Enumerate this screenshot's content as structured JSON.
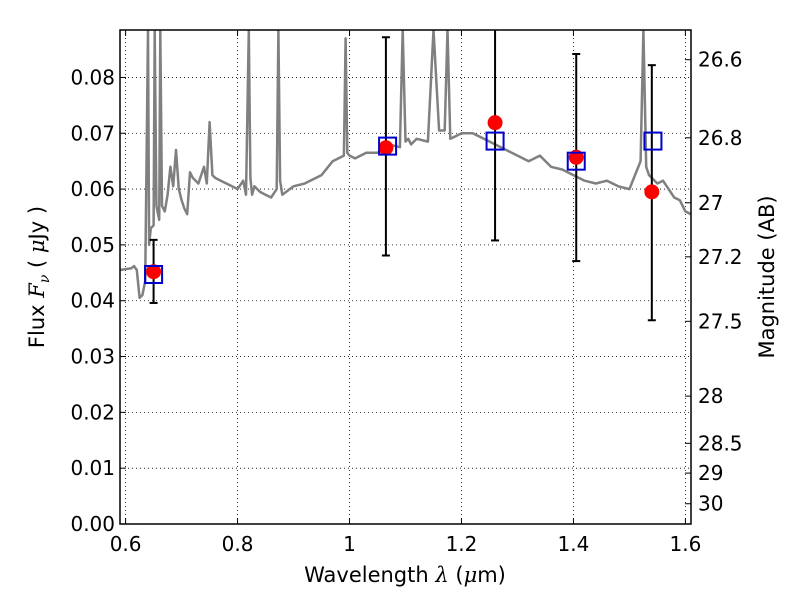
{
  "chart_data": {
    "type": "scatter",
    "title": "",
    "xlabel_text": "Wavelength",
    "xlabel_symbol": "λ",
    "xlabel_unit_open": " (",
    "xlabel_unit_mu": "μ",
    "xlabel_unit_close": "m)",
    "ylabel_text": "Flux",
    "ylabel_symbol": "F",
    "ylabel_sub": "ν",
    "ylabel_unit_open": " ( ",
    "ylabel_unit_mu": "μ",
    "ylabel_unit_close": "Jy )",
    "y2label": "Magnitude (AB)",
    "xlim": [
      0.59,
      1.61
    ],
    "ylim": [
      0.0,
      0.0885
    ],
    "grid": true,
    "x_ticks": [
      0.6,
      0.8,
      1.0,
      1.2,
      1.4,
      1.6
    ],
    "x_tick_labels": [
      "0.6",
      "0.8",
      "1",
      "1.2",
      "1.4",
      "1.6"
    ],
    "y_ticks": [
      0.0,
      0.01,
      0.02,
      0.03,
      0.04,
      0.05,
      0.06,
      0.07,
      0.08
    ],
    "y_tick_labels": [
      "0.00",
      "0.01",
      "0.02",
      "0.03",
      "0.04",
      "0.05",
      "0.06",
      "0.07",
      "0.08"
    ],
    "y2_ticks": [
      26.6,
      26.8,
      27.0,
      27.2,
      27.5,
      28.0,
      28.5,
      29.0,
      30.0
    ],
    "y2_tick_labels": [
      "26.6",
      "26.8",
      "27",
      "27.2",
      "27.5",
      "28",
      "28.5",
      "29",
      "30"
    ],
    "y2_zero_point_uJy": 0.0363,
    "colors": {
      "template": "#808080",
      "observed": "#ff0000",
      "model": "#0000cc",
      "errorbar": "#000000"
    },
    "series": [
      {
        "type": "line",
        "x": [
          0.59,
          0.61,
          0.615,
          0.62,
          0.625,
          0.63,
          0.635,
          0.64,
          0.642,
          0.645,
          0.65,
          0.652,
          0.655,
          0.66,
          0.662,
          0.665,
          0.67,
          0.675,
          0.68,
          0.685,
          0.69,
          0.695,
          0.7,
          0.705,
          0.71,
          0.715,
          0.72,
          0.73,
          0.74,
          0.745,
          0.75,
          0.755,
          0.76,
          0.77,
          0.78,
          0.79,
          0.8,
          0.81,
          0.815,
          0.82,
          0.823,
          0.826,
          0.83,
          0.84,
          0.85,
          0.86,
          0.87,
          0.873,
          0.876,
          0.88,
          0.9,
          0.92,
          0.95,
          0.97,
          0.99,
          0.993,
          0.996,
          1.0,
          1.01,
          1.03,
          1.05,
          1.07,
          1.09,
          1.095,
          1.1,
          1.105,
          1.11,
          1.12,
          1.14,
          1.15,
          1.16,
          1.17,
          1.175,
          1.18,
          1.19,
          1.2,
          1.22,
          1.24,
          1.26,
          1.28,
          1.3,
          1.32,
          1.34,
          1.36,
          1.38,
          1.4,
          1.42,
          1.44,
          1.46,
          1.48,
          1.5,
          1.52,
          1.525,
          1.53,
          1.535,
          1.54,
          1.55,
          1.56,
          1.57,
          1.58,
          1.59,
          1.6,
          1.61
        ],
        "y": [
          0.0455,
          0.0458,
          0.0462,
          0.0455,
          0.0405,
          0.041,
          0.0435,
          0.09,
          0.05,
          0.053,
          0.0535,
          0.09,
          0.057,
          0.0545,
          0.09,
          0.057,
          0.056,
          0.059,
          0.064,
          0.0605,
          0.067,
          0.06,
          0.058,
          0.0565,
          0.0555,
          0.063,
          0.062,
          0.061,
          0.064,
          0.061,
          0.072,
          0.0625,
          0.062,
          0.0615,
          0.061,
          0.0605,
          0.06,
          0.0615,
          0.059,
          0.09,
          0.062,
          0.059,
          0.0605,
          0.0595,
          0.059,
          0.0585,
          0.06,
          0.09,
          0.0615,
          0.059,
          0.0605,
          0.061,
          0.0625,
          0.065,
          0.066,
          0.087,
          0.0665,
          0.066,
          0.0655,
          0.0665,
          0.0665,
          0.068,
          0.0675,
          0.09,
          0.0685,
          0.069,
          0.068,
          0.069,
          0.0685,
          0.09,
          0.0705,
          0.0705,
          0.09,
          0.069,
          0.0695,
          0.07,
          0.07,
          0.069,
          0.068,
          0.067,
          0.066,
          0.065,
          0.066,
          0.064,
          0.0635,
          0.0625,
          0.0615,
          0.061,
          0.0615,
          0.0605,
          0.06,
          0.065,
          0.09,
          0.064,
          0.0625,
          0.062,
          0.061,
          0.0615,
          0.06,
          0.0585,
          0.058,
          0.056,
          0.0555
        ]
      },
      {
        "type": "errorbar",
        "x": [
          0.65,
          1.065,
          1.26,
          1.405,
          1.54
        ],
        "y": [
          0.0452,
          0.0674,
          0.0719,
          0.0657,
          0.0595
        ],
        "yerr_low": [
          0.0396,
          0.0481,
          0.0508,
          0.0471,
          0.0365
        ],
        "yerr_high": [
          0.0509,
          0.0872,
          0.09,
          0.0842,
          0.0822
        ]
      },
      {
        "type": "scatter_square",
        "x": [
          0.65,
          1.068,
          1.26,
          1.405,
          1.542
        ],
        "y": [
          0.0447,
          0.0677,
          0.0686,
          0.065,
          0.0686
        ]
      }
    ]
  }
}
